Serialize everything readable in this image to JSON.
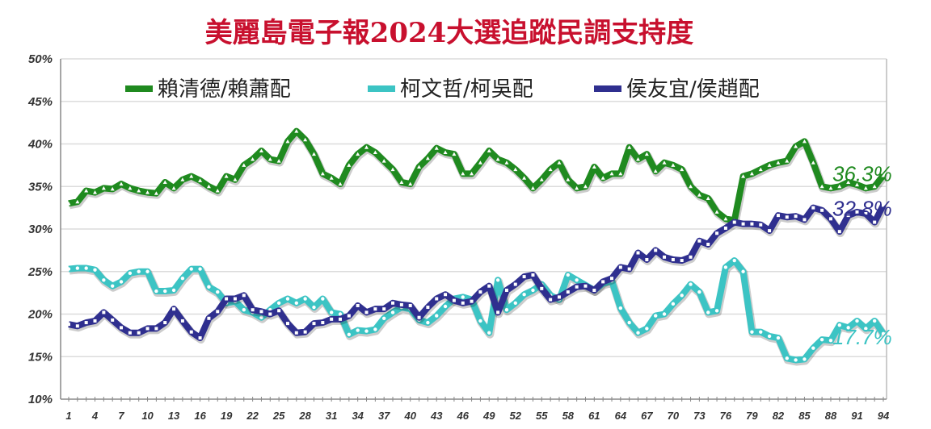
{
  "chart_data": {
    "type": "line",
    "title": "美麗島電子報2024大選追蹤民調支持度",
    "xlabel": "",
    "ylabel": "",
    "ylim": [
      10,
      50
    ],
    "yticks": [
      "10%",
      "15%",
      "20%",
      "25%",
      "30%",
      "35%",
      "40%",
      "45%",
      "50%"
    ],
    "xticks": [
      1,
      4,
      7,
      10,
      13,
      16,
      19,
      22,
      25,
      28,
      31,
      34,
      37,
      40,
      43,
      46,
      49,
      52,
      55,
      58,
      61,
      64,
      67,
      70,
      73,
      76,
      79,
      82,
      85,
      88,
      91,
      94
    ],
    "grid": true,
    "legend": "top",
    "series": [
      {
        "name": "賴清德/賴蕭配",
        "color": "#1f8a1f",
        "end_label": "36.3%",
        "marker": "triangle",
        "values": [
          33,
          33.2,
          34.5,
          34.3,
          34.8,
          34.7,
          35.3,
          34.8,
          34.5,
          34.3,
          34.2,
          35.5,
          34.8,
          35.8,
          36.2,
          35.7,
          35,
          34.5,
          36.2,
          35.8,
          37.5,
          38.2,
          39.2,
          38.2,
          38,
          40.3,
          41.5,
          40.5,
          38.8,
          36.5,
          36,
          35.3,
          37.5,
          38.8,
          39.6,
          39,
          38,
          37,
          35.5,
          35.3,
          37.3,
          38.3,
          39.5,
          39,
          38.8,
          36.5,
          36.5,
          37.8,
          39.2,
          38.2,
          37.8,
          37,
          36,
          34.8,
          35.8,
          37,
          37.8,
          35.8,
          34.8,
          35,
          37.3,
          36,
          36.5,
          36.5,
          39.6,
          38.2,
          38.8,
          36.8,
          37.8,
          37.5,
          37,
          35,
          34,
          33.6,
          32,
          31.2,
          31,
          36.2,
          36.5,
          37,
          37.5,
          37.8,
          38,
          39.7,
          40.3,
          37.8,
          35,
          34.8,
          35,
          35.5,
          35.2,
          34.8,
          35,
          36.3
        ]
      },
      {
        "name": "柯文哲/柯吳配",
        "color": "#3cc4c4",
        "end_label": "17.7%",
        "marker": "circle",
        "values": [
          25.3,
          25.4,
          25.4,
          25.2,
          24,
          23.3,
          23.8,
          24.8,
          25,
          25,
          22.7,
          22.7,
          22.8,
          24.2,
          25.3,
          25.3,
          23.2,
          22.6,
          21.3,
          21.5,
          20.5,
          20.2,
          19.6,
          20.5,
          21.3,
          21.8,
          21.3,
          21.8,
          20.8,
          21.8,
          20.2,
          20,
          17.6,
          18.1,
          18,
          18.2,
          19.5,
          20.2,
          20.8,
          20.6,
          19.3,
          19,
          19.8,
          20.9,
          21.8,
          22,
          21.7,
          19.2,
          17.8,
          24,
          20.5,
          21.3,
          22.3,
          22.8,
          23.5,
          22.2,
          21.7,
          24.6,
          24,
          23.4,
          22.8,
          23.6,
          23.9,
          20.7,
          19,
          17.8,
          18.3,
          19.8,
          20,
          21.2,
          22.2,
          23.5,
          22.6,
          20.2,
          20.4,
          25.5,
          26.3,
          25,
          17.9,
          17.9,
          17.4,
          17.2,
          14.8,
          14.6,
          14.7,
          16,
          17,
          16.9,
          18.7,
          18.4,
          19.2,
          18.3,
          19.2,
          17.7
        ]
      },
      {
        "name": "侯友宜/侯趙配",
        "color": "#2f2f8f",
        "end_label": "32.8%",
        "marker": "square",
        "values": [
          18.8,
          18.6,
          19,
          19.2,
          20.2,
          19.3,
          18.4,
          17.8,
          17.8,
          18.3,
          18.3,
          19,
          20.6,
          19.2,
          17.9,
          17.2,
          19.5,
          20.3,
          21.8,
          21.8,
          22.2,
          20.5,
          20.3,
          20,
          20.4,
          18.9,
          17.8,
          17.9,
          18.9,
          19,
          19.4,
          19.4,
          19.8,
          21,
          20.2,
          20.6,
          20.6,
          21.3,
          21.1,
          21,
          19.6,
          20.8,
          21.8,
          22.3,
          21.6,
          21.3,
          21.5,
          22.6,
          23.3,
          20.2,
          22.8,
          23.5,
          24.4,
          24.6,
          23,
          21.7,
          22,
          22.6,
          23.2,
          23.3,
          22.8,
          23.8,
          24.2,
          25.5,
          25.3,
          27.2,
          26.4,
          27.5,
          26.7,
          26.4,
          26.3,
          26.7,
          28.6,
          28.2,
          29.5,
          30.1,
          30.8,
          30.6,
          30.6,
          30.5,
          29.8,
          31.6,
          31.4,
          31.5,
          31.1,
          32.5,
          32.2,
          31.2,
          29.7,
          31.6,
          32,
          31.8,
          30.8,
          32.8
        ]
      }
    ]
  }
}
